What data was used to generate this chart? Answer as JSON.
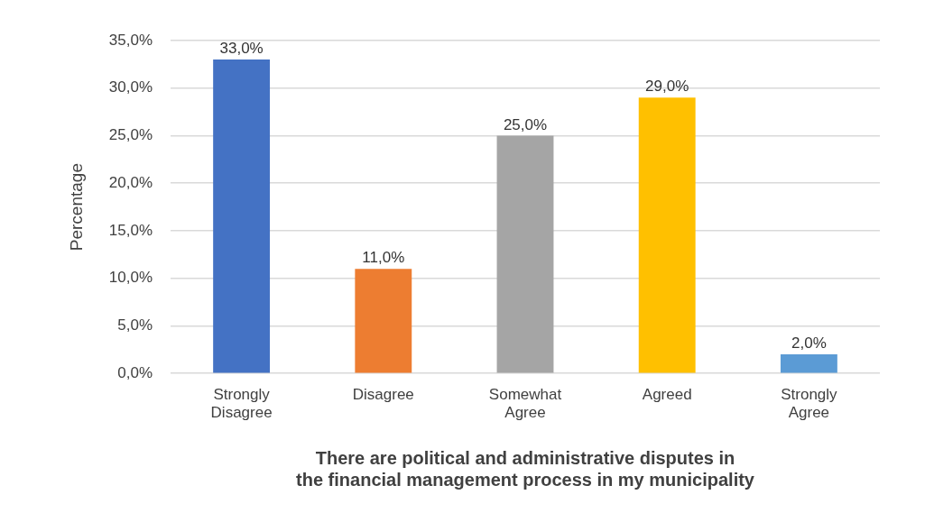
{
  "chart_data": {
    "type": "bar",
    "categories": [
      "Strongly Disagree",
      "Disagree",
      "Somewhat Agree",
      "Agreed",
      "Strongly Agree"
    ],
    "values": [
      33,
      11,
      25,
      29,
      2
    ],
    "colors": [
      "#4472c4",
      "#ed7d31",
      "#a5a5a5",
      "#ffc000",
      "#5b9bd5"
    ],
    "value_labels": [
      "33,0%",
      "11,0%",
      "25,0%",
      "29,0%",
      "2,0%"
    ],
    "ylabel": "Percentage",
    "xlabel": "There are political and administrative disputes in the financial management process in my municipality",
    "ylim": [
      0,
      35
    ],
    "yticks": [
      {
        "value": 0,
        "label": "0,0%"
      },
      {
        "value": 5,
        "label": "5,0%"
      },
      {
        "value": 10,
        "label": "10,0%"
      },
      {
        "value": 15,
        "label": "15,0%"
      },
      {
        "value": 20,
        "label": "20,0%"
      },
      {
        "value": 25,
        "label": "25,0%"
      },
      {
        "value": 30,
        "label": "30,0%"
      },
      {
        "value": 35,
        "label": "35,0%"
      }
    ],
    "grid": "y",
    "legend": false
  }
}
